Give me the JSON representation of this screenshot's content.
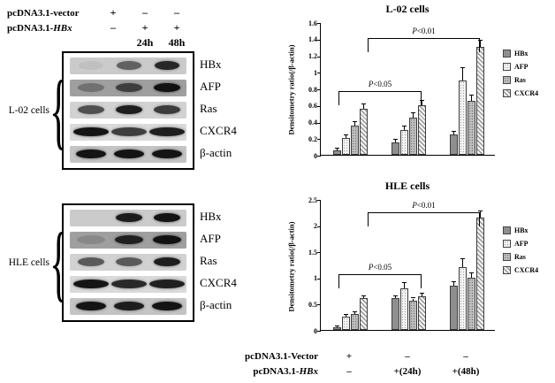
{
  "decor": {
    "brace": "{"
  },
  "header_rows": [
    {
      "label": "pcDNA3.1-vector",
      "label_italic": "",
      "values": [
        "+",
        "–",
        "–"
      ]
    },
    {
      "label": "pcDNA3.1-",
      "label_italic": "HBx",
      "values": [
        "–",
        "+",
        "+"
      ]
    },
    {
      "label": "",
      "label_italic": "",
      "values": [
        "",
        "24h",
        "48h"
      ]
    }
  ],
  "blots": [
    {
      "cell_line": "L-02 cells",
      "rows": [
        {
          "protein": "HBx",
          "bg": "#cbcbcb",
          "band_w": 28,
          "bands": [
            0.05,
            0.55,
            0.85
          ]
        },
        {
          "protein": "AFP",
          "bg": "#9f9f9f",
          "band_w": 30,
          "bands": [
            0.3,
            0.65,
            0.95
          ]
        },
        {
          "protein": "Ras",
          "bg": "#d2d2d2",
          "band_w": 30,
          "bands": [
            0.65,
            0.9,
            0.75
          ]
        },
        {
          "protein": "CXCR4",
          "bg": "#dadada",
          "band_w": 40,
          "bands": [
            0.95,
            0.75,
            0.9
          ]
        },
        {
          "protein": "β-actin",
          "bg": "#c4c4c4",
          "band_w": 34,
          "bands": [
            0.95,
            0.95,
            0.95
          ]
        }
      ]
    },
    {
      "cell_line": "HLE cells",
      "rows": [
        {
          "protein": "HBx",
          "bg": "#cbcbcb",
          "band_w": 30,
          "bands": [
            0.0,
            0.9,
            0.95
          ]
        },
        {
          "protein": "AFP",
          "bg": "#9f9f9f",
          "band_w": 32,
          "bands": [
            0.15,
            0.85,
            0.95
          ]
        },
        {
          "protein": "Ras",
          "bg": "#d2d2d2",
          "band_w": 30,
          "bands": [
            0.6,
            0.6,
            0.9
          ]
        },
        {
          "protein": "CXCR4",
          "bg": "#dadada",
          "band_w": 40,
          "bands": [
            0.95,
            0.85,
            0.9
          ]
        },
        {
          "protein": "β-actin",
          "bg": "#c4c4c4",
          "band_w": 34,
          "bands": [
            0.95,
            0.9,
            0.95
          ]
        }
      ]
    }
  ],
  "chart_data": [
    {
      "type": "bar",
      "title": "L-02 cells",
      "ylabel": "Densitometry ratio(/β-actin)",
      "ylim": [
        0,
        1.6
      ],
      "yticks": [
        0,
        0.2,
        0.4,
        0.6,
        0.8,
        1.0,
        1.2,
        1.4,
        1.6
      ],
      "ytick_labels": [
        "0",
        "0.2",
        "0.4",
        "0.6",
        "0.8",
        "1",
        "1.2",
        "1.4",
        "1.6"
      ],
      "categories": [
        "pcDNA3.1-Vector +",
        "pcDNA3.1-HBx +(24h)",
        "pcDNA3.1-HBx +(48h)"
      ],
      "series": [
        {
          "name": "HBx",
          "values": [
            0.05,
            0.15,
            0.25
          ],
          "errors": [
            0.02,
            0.03,
            0.03
          ]
        },
        {
          "name": "AFP",
          "values": [
            0.2,
            0.3,
            0.9
          ],
          "errors": [
            0.03,
            0.04,
            0.15
          ]
        },
        {
          "name": "Ras",
          "values": [
            0.35,
            0.45,
            0.65
          ],
          "errors": [
            0.05,
            0.05,
            0.06
          ]
        },
        {
          "name": "CXCR4",
          "values": [
            0.55,
            0.6,
            1.3
          ],
          "errors": [
            0.06,
            0.05,
            0.08
          ]
        }
      ],
      "annotations": [
        {
          "label": "P<0.05",
          "from": 0,
          "to": 1,
          "y": 0.78
        },
        {
          "label": "P<0.01",
          "from": 0.5,
          "to": 2,
          "y": 1.42
        }
      ],
      "legend_position": "right",
      "grid": false
    },
    {
      "type": "bar",
      "title": "HLE cells",
      "ylabel": "Densitometry ratio(/β-actin)",
      "ylim": [
        0,
        2.5
      ],
      "yticks": [
        0,
        0.5,
        1.0,
        1.5,
        2.0,
        2.5
      ],
      "ytick_labels": [
        "0",
        "0.5",
        "1",
        "1.5",
        "2",
        "2.5"
      ],
      "categories": [
        "pcDNA3.1-Vector +",
        "pcDNA3.1-HBx +(24h)",
        "pcDNA3.1-HBx +(48h)"
      ],
      "series": [
        {
          "name": "HBx",
          "values": [
            0.05,
            0.6,
            0.85
          ],
          "errors": [
            0.02,
            0.05,
            0.06
          ]
        },
        {
          "name": "AFP",
          "values": [
            0.25,
            0.8,
            1.2
          ],
          "errors": [
            0.04,
            0.1,
            0.15
          ]
        },
        {
          "name": "Ras",
          "values": [
            0.3,
            0.55,
            1.0
          ],
          "errors": [
            0.04,
            0.05,
            0.08
          ]
        },
        {
          "name": "CXCR4",
          "values": [
            0.6,
            0.65,
            2.15
          ],
          "errors": [
            0.05,
            0.05,
            0.12
          ]
        }
      ],
      "annotations": [
        {
          "label": "P<0.05",
          "from": 0,
          "to": 1,
          "y": 1.08
        },
        {
          "label": "P<0.01",
          "from": 0.5,
          "to": 2,
          "y": 2.27
        }
      ],
      "legend_position": "right",
      "grid": false
    }
  ],
  "xaxis_rows": [
    {
      "label": "pcDNA3.1-Vector",
      "label_italic": "",
      "values": [
        "+",
        "–",
        "–"
      ]
    },
    {
      "label": "pcDNA3.1-",
      "label_italic": "HBx",
      "values": [
        "–",
        "+(24h)",
        "+(48h)"
      ]
    }
  ]
}
